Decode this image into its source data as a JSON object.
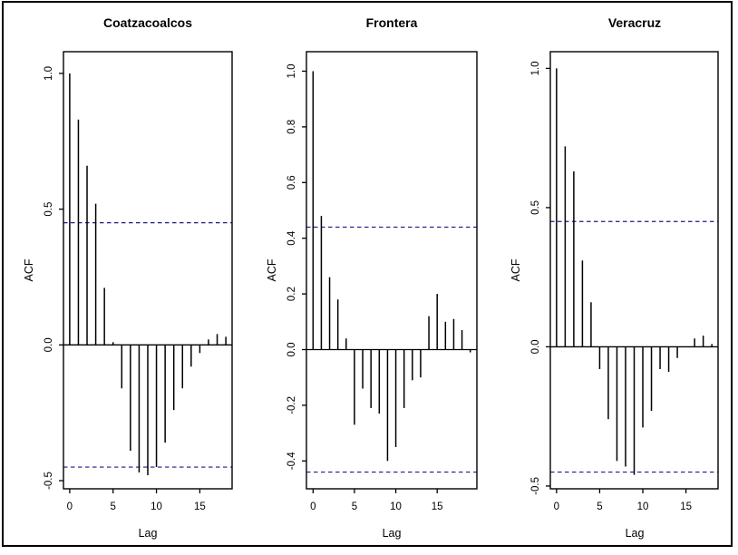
{
  "figure": {
    "background_color": "#ffffff",
    "frame_color": "#000000",
    "bar_color": "#000000",
    "ci_line_color": "#1b1b8a"
  },
  "chart_data": [
    {
      "type": "bar",
      "title": "Coatzacoalcos",
      "xlabel": "Lag",
      "ylabel": "ACF",
      "x": [
        0,
        1,
        2,
        3,
        4,
        5,
        6,
        7,
        8,
        9,
        10,
        11,
        12,
        13,
        14,
        15,
        16,
        17,
        18
      ],
      "values": [
        1.0,
        0.83,
        0.66,
        0.52,
        0.21,
        0.01,
        -0.16,
        -0.39,
        -0.47,
        -0.48,
        -0.45,
        -0.36,
        -0.24,
        -0.16,
        -0.08,
        -0.03,
        0.02,
        0.04,
        0.03
      ],
      "confidence_interval": 0.45,
      "xlim": [
        -0.72,
        18.72
      ],
      "ylim": [
        -0.53,
        1.08
      ],
      "xticks": [
        0,
        5,
        10,
        15
      ],
      "xtick_labels": [
        "0",
        "5",
        "10",
        "15"
      ],
      "yticks": [
        -0.5,
        0.0,
        0.5,
        1.0
      ],
      "ytick_labels": [
        "-0.5",
        "0.0",
        "0.5",
        "1.0"
      ],
      "grid": false,
      "legend": false
    },
    {
      "type": "bar",
      "title": "Frontera",
      "xlabel": "Lag",
      "ylabel": "ACF",
      "x": [
        0,
        1,
        2,
        3,
        4,
        5,
        6,
        7,
        8,
        9,
        10,
        11,
        12,
        13,
        14,
        15,
        16,
        17,
        18,
        19
      ],
      "values": [
        1.0,
        0.48,
        0.26,
        0.18,
        0.04,
        -0.27,
        -0.14,
        -0.21,
        -0.23,
        -0.4,
        -0.35,
        -0.21,
        -0.11,
        -0.1,
        0.12,
        0.2,
        0.1,
        0.11,
        0.07,
        -0.01
      ],
      "confidence_interval": 0.44,
      "xlim": [
        -0.8,
        19.8
      ],
      "ylim": [
        -0.5,
        1.07
      ],
      "xticks": [
        0,
        5,
        10,
        15
      ],
      "xtick_labels": [
        "0",
        "5",
        "10",
        "15"
      ],
      "yticks": [
        -0.4,
        -0.2,
        0.0,
        0.2,
        0.4,
        0.6,
        0.8,
        1.0
      ],
      "ytick_labels": [
        "-0.4",
        "-0.2",
        "0.0",
        "0.2",
        "0.4",
        "0.6",
        "0.8",
        "1.0"
      ],
      "grid": false,
      "legend": false
    },
    {
      "type": "bar",
      "title": "Veracruz",
      "xlabel": "Lag",
      "ylabel": "ACF",
      "x": [
        0,
        1,
        2,
        3,
        4,
        5,
        6,
        7,
        8,
        9,
        10,
        11,
        12,
        13,
        14,
        15,
        16,
        17,
        18
      ],
      "values": [
        1.0,
        0.72,
        0.63,
        0.31,
        0.16,
        -0.08,
        -0.26,
        -0.41,
        -0.43,
        -0.46,
        -0.29,
        -0.23,
        -0.08,
        -0.09,
        -0.04,
        0.0,
        0.03,
        0.04,
        0.01
      ],
      "confidence_interval": 0.45,
      "xlim": [
        -0.72,
        18.72
      ],
      "ylim": [
        -0.51,
        1.06
      ],
      "xticks": [
        0,
        5,
        10,
        15
      ],
      "xtick_labels": [
        "0",
        "5",
        "10",
        "15"
      ],
      "yticks": [
        -0.5,
        0.0,
        0.5,
        1.0
      ],
      "ytick_labels": [
        "-0.5",
        "0.0",
        "0.5",
        "1.0"
      ],
      "grid": false,
      "legend": false
    }
  ]
}
